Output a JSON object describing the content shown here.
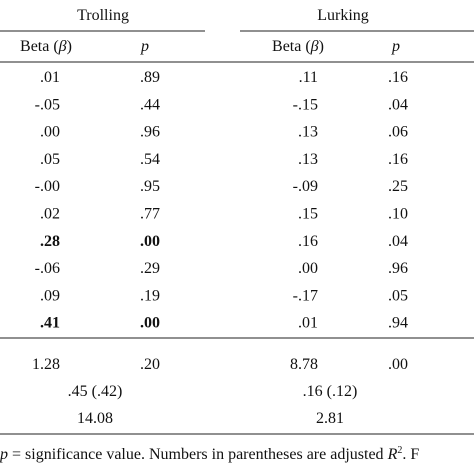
{
  "header": {
    "trolling": "Trolling",
    "lurking": "Lurking",
    "beta": [
      "Beta (",
      "β",
      ")"
    ],
    "p": "p"
  },
  "rows": [
    {
      "cells": [
        ".01",
        ".89",
        ".11",
        ".16"
      ]
    },
    {
      "cells": [
        "-.05",
        ".44",
        "-.15",
        ".04"
      ]
    },
    {
      "cells": [
        ".00",
        ".96",
        ".13",
        ".06"
      ]
    },
    {
      "cells": [
        ".05",
        ".54",
        ".13",
        ".16"
      ]
    },
    {
      "cells": [
        "-.00",
        ".95",
        "-.09",
        ".25"
      ]
    },
    {
      "cells": [
        ".02",
        ".77",
        ".15",
        ".10"
      ]
    },
    {
      "cells": [
        ".28",
        ".00",
        ".16",
        ".04"
      ],
      "bold": true
    },
    {
      "cells": [
        "-.06",
        ".29",
        ".00",
        ".96"
      ]
    },
    {
      "cells": [
        ".09",
        ".19",
        "-.17",
        ".05"
      ]
    },
    {
      "cells": [
        ".41",
        ".00",
        ".01",
        ".94"
      ],
      "bold": true
    }
  ],
  "stats": {
    "f_row": [
      "1.28",
      ".20",
      "8.78",
      ".00"
    ],
    "r2": [
      ".45 (.42)",
      ".16 (.12)"
    ],
    "f": [
      "14.08",
      "2.81"
    ]
  },
  "footnote": [
    "p",
    " = significance value. Numbers in parentheses are adjusted ",
    "R",
    "2",
    ". F"
  ]
}
